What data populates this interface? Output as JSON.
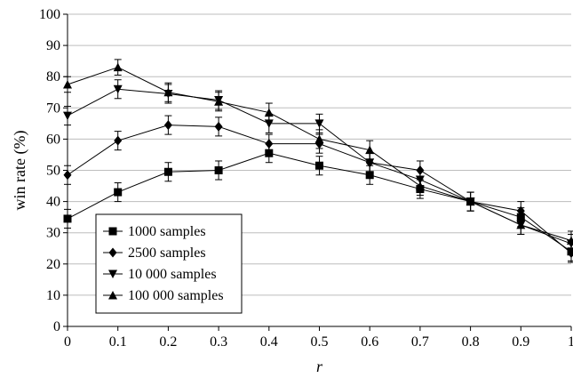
{
  "chart_data": {
    "type": "line",
    "xlabel": "r",
    "ylabel": "win rate (%)",
    "xlim": [
      0,
      1
    ],
    "ylim": [
      0,
      100
    ],
    "x_ticks": [
      "0",
      "0.1",
      "0.2",
      "0.3",
      "0.4",
      "0.5",
      "0.6",
      "0.7",
      "0.8",
      "0.9",
      "1"
    ],
    "y_ticks": [
      "0",
      "10",
      "20",
      "30",
      "40",
      "50",
      "60",
      "70",
      "80",
      "90",
      "100"
    ],
    "grid": "horizontal",
    "legend_position": "lower-left",
    "x": [
      0,
      0.1,
      0.2,
      0.3,
      0.4,
      0.5,
      0.6,
      0.7,
      0.8,
      0.9,
      1.0
    ],
    "series": [
      {
        "name": "1000 samples",
        "marker": "square",
        "values": [
          34.5,
          43,
          49.5,
          50,
          55.5,
          51.5,
          48.5,
          44,
          40,
          35,
          24
        ],
        "errors": [
          3,
          3,
          3,
          3,
          3,
          3,
          3,
          3,
          3,
          3,
          3
        ]
      },
      {
        "name": "2500 samples",
        "marker": "diamond",
        "values": [
          48.5,
          59.5,
          64.5,
          64,
          58.5,
          58.5,
          52.5,
          50,
          40,
          37,
          23.5
        ],
        "errors": [
          3,
          3,
          3,
          3,
          3,
          3,
          3,
          3,
          3,
          3,
          3
        ]
      },
      {
        "name": "10 000 samples",
        "marker": "triangle-down",
        "values": [
          67.5,
          76,
          74.5,
          72.5,
          65,
          65,
          52.5,
          47,
          40,
          32.5,
          26.5
        ],
        "errors": [
          3,
          3,
          3,
          3,
          3,
          3,
          3,
          3,
          3,
          3,
          3
        ]
      },
      {
        "name": "100 000 samples",
        "marker": "triangle-up",
        "values": [
          77.5,
          83,
          75,
          72,
          68.5,
          60,
          56.5,
          45,
          40,
          32.5,
          27.5
        ],
        "errors": [
          2.5,
          2.5,
          3,
          3,
          3,
          3,
          3,
          3,
          3,
          3,
          3
        ]
      }
    ]
  }
}
